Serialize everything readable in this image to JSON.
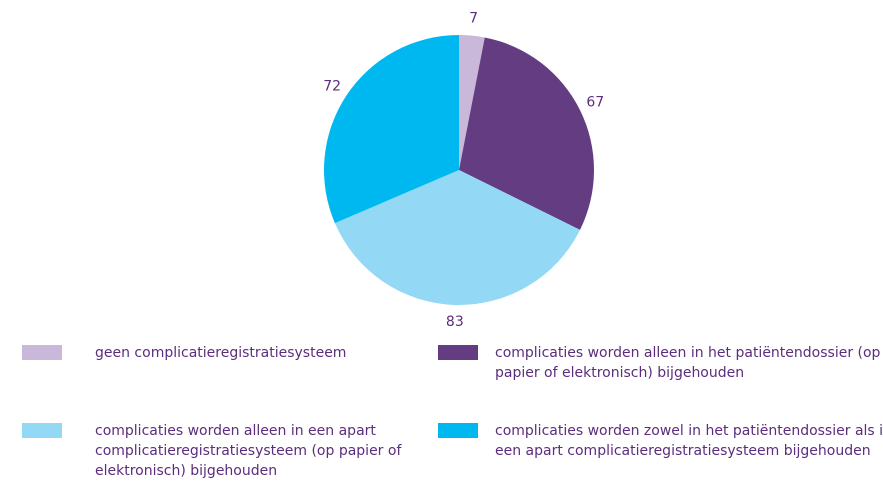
{
  "chart_data": {
    "type": "pie",
    "categories": [
      "geen complicatieregistratiesysteem",
      "complicaties worden alleen in het patiëntendossier (op papier of elektronisch) bijgehouden",
      "complicaties worden alleen in een apart complicatieregistratiesysteem (op papier of elektronisch) bijgehouden",
      "complicaties worden zowel in het patiëntendossier als in een apart complicatieregistratiesysteem bijgehouden"
    ],
    "values": [
      7,
      67,
      83,
      72
    ],
    "colors": [
      "#c9b8d9",
      "#633c82",
      "#93d8f5",
      "#00b8f0"
    ],
    "legend": "bottom"
  }
}
